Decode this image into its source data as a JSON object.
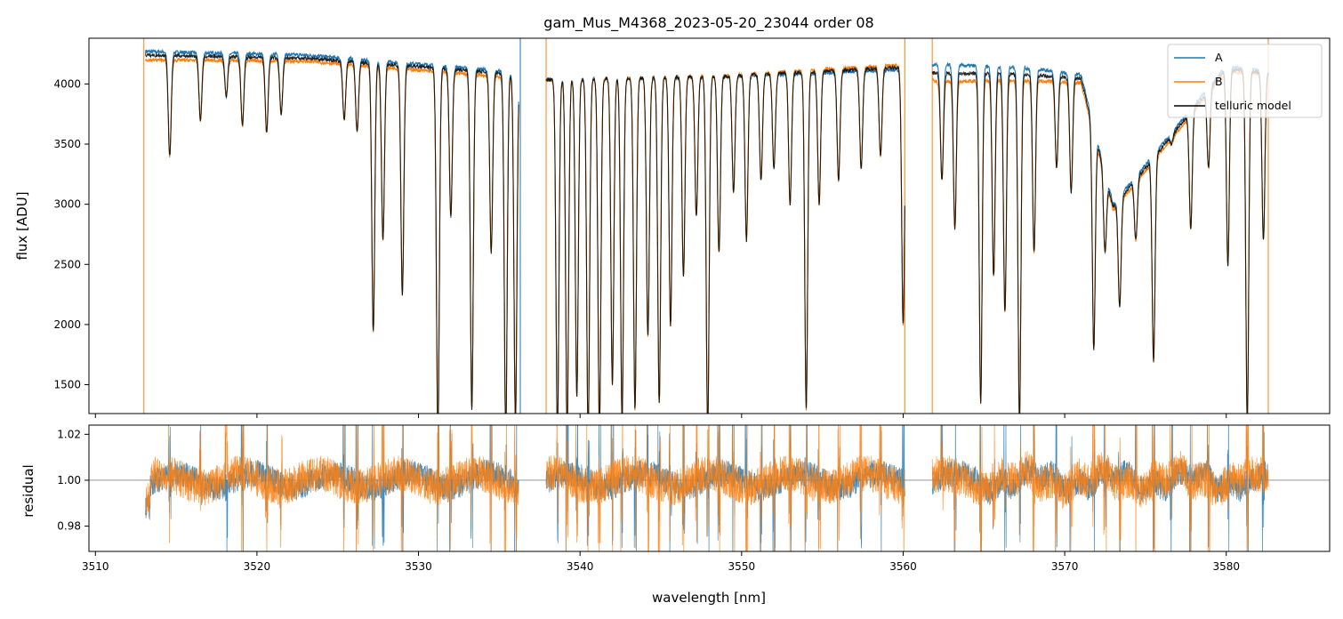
{
  "chart_data": [
    {
      "type": "line",
      "title": "gam_Mus_M4368_2023-05-20_23044  order 08",
      "xlabel": "",
      "ylabel": "flux [ADU]",
      "xlim": [
        3509.6,
        3586.4
      ],
      "ylim": [
        1260,
        4380
      ],
      "yticks": [
        1500,
        2000,
        2500,
        3000,
        3500,
        4000
      ],
      "ytick_labels": [
        "1500",
        "2000",
        "2500",
        "3000",
        "3500",
        "4000"
      ],
      "xticks": [
        3510,
        3520,
        3530,
        3540,
        3550,
        3560,
        3570,
        3580
      ],
      "legend": {
        "placement": "upper-right",
        "entries": [
          "A",
          "B",
          "telluric model"
        ]
      },
      "series": [
        {
          "name": "A",
          "color": "#1f77b4",
          "segments": [
            [
              3513.1,
              3536.2
            ],
            [
              3537.9,
              3560.1
            ],
            [
              3561.8,
              3582.6
            ]
          ],
          "continuum": [
            [
              3513.1,
              4270
            ],
            [
              3523,
              4240
            ],
            [
              3536,
              4100
            ],
            [
              3538,
              4040
            ],
            [
              3549,
              4060
            ],
            [
              3560,
              4120
            ],
            [
              3562,
              4160
            ],
            [
              3567,
              4140
            ],
            [
              3571,
              4080
            ],
            [
              3573,
              3000
            ],
            [
              3580,
              4150
            ],
            [
              3582.6,
              4100
            ]
          ]
        },
        {
          "name": "B",
          "color": "#ff7f0e",
          "segments": [
            [
              3513.1,
              3536.2
            ],
            [
              3537.9,
              3560.1
            ],
            [
              3561.8,
              3582.6
            ]
          ],
          "continuum": [
            [
              3513.1,
              4200
            ],
            [
              3523,
              4190
            ],
            [
              3536,
              4050
            ],
            [
              3538,
              4030
            ],
            [
              3549,
              4070
            ],
            [
              3560,
              4160
            ],
            [
              3562,
              4020
            ],
            [
              3567,
              4030
            ],
            [
              3571,
              4010
            ],
            [
              3573,
              2950
            ],
            [
              3580,
              4100
            ],
            [
              3582.6,
              4080
            ]
          ]
        },
        {
          "name": "telluric model",
          "color": "#000000",
          "segments": [
            [
              3513.1,
              3536.2
            ],
            [
              3537.9,
              3560.1
            ],
            [
              3561.8,
              3582.6
            ]
          ],
          "continuum": [
            [
              3513.1,
              4240
            ],
            [
              3523,
              4215
            ],
            [
              3536,
              4080
            ],
            [
              3538,
              4035
            ],
            [
              3549,
              4065
            ],
            [
              3560,
              4140
            ],
            [
              3562,
              4090
            ],
            [
              3567,
              4085
            ],
            [
              3571,
              4045
            ],
            [
              3573,
              2975
            ],
            [
              3580,
              4125
            ],
            [
              3582.6,
              4090
            ]
          ]
        }
      ],
      "absorption_lines": [
        [
          3514.6,
          3400
        ],
        [
          3516.5,
          3700
        ],
        [
          3518.1,
          3900
        ],
        [
          3519.1,
          3650
        ],
        [
          3520.6,
          3600
        ],
        [
          3521.5,
          3750
        ],
        [
          3525.4,
          3700
        ],
        [
          3526.2,
          3600
        ],
        [
          3527.2,
          1950
        ],
        [
          3527.8,
          2700
        ],
        [
          3529.0,
          2250
        ],
        [
          3531.2,
          1100
        ],
        [
          3532.0,
          2900
        ],
        [
          3533.3,
          1300
        ],
        [
          3534.5,
          2600
        ],
        [
          3535.4,
          1100
        ],
        [
          3536.0,
          1200
        ],
        [
          3538.6,
          1100
        ],
        [
          3539.2,
          1100
        ],
        [
          3539.8,
          1400
        ],
        [
          3540.5,
          1100
        ],
        [
          3541.2,
          1100
        ],
        [
          3542.0,
          1500
        ],
        [
          3542.6,
          1200
        ],
        [
          3543.4,
          1300
        ],
        [
          3544.2,
          1900
        ],
        [
          3544.9,
          1350
        ],
        [
          3545.6,
          2000
        ],
        [
          3546.4,
          2400
        ],
        [
          3547.2,
          2900
        ],
        [
          3547.9,
          1100
        ],
        [
          3548.6,
          2600
        ],
        [
          3549.5,
          3100
        ],
        [
          3550.3,
          2700
        ],
        [
          3551.2,
          3200
        ],
        [
          3552.0,
          3300
        ],
        [
          3553.0,
          3000
        ],
        [
          3554.0,
          1300
        ],
        [
          3554.8,
          3000
        ],
        [
          3556.0,
          3200
        ],
        [
          3557.4,
          3300
        ],
        [
          3558.6,
          3400
        ],
        [
          3560.0,
          2000
        ],
        [
          3562.4,
          3200
        ],
        [
          3563.2,
          2800
        ],
        [
          3564.8,
          1350
        ],
        [
          3565.6,
          2400
        ],
        [
          3566.3,
          2100
        ],
        [
          3567.2,
          1200
        ],
        [
          3568.1,
          2600
        ],
        [
          3569.5,
          3300
        ],
        [
          3570.4,
          3100
        ],
        [
          3571.8,
          1800
        ],
        [
          3572.5,
          2600
        ],
        [
          3573.4,
          2150
        ],
        [
          3574.4,
          2700
        ],
        [
          3575.5,
          1700
        ],
        [
          3576.6,
          3500
        ],
        [
          3577.8,
          2800
        ],
        [
          3578.9,
          3300
        ],
        [
          3580.1,
          2500
        ],
        [
          3581.3,
          1200
        ],
        [
          3582.3,
          2700
        ]
      ]
    },
    {
      "type": "line",
      "title": "",
      "xlabel": "wavelength [nm]",
      "ylabel": "residual",
      "xlim": [
        3509.6,
        3586.4
      ],
      "ylim": [
        0.969,
        1.024
      ],
      "yticks": [
        0.98,
        1.0,
        1.02
      ],
      "ytick_labels": [
        "0.98",
        "1.00",
        "1.02"
      ],
      "xticks": [
        3510,
        3520,
        3530,
        3540,
        3550,
        3560,
        3570,
        3580
      ],
      "xtick_labels": [
        "3510",
        "3520",
        "3530",
        "3540",
        "3550",
        "3560",
        "3570",
        "3580"
      ],
      "reference_line": 1.0,
      "series": [
        {
          "name": "A",
          "color": "#1f77b4",
          "baseline": 1.0,
          "noise": 0.006
        },
        {
          "name": "B",
          "color": "#ff7f0e",
          "baseline": 1.0,
          "noise": 0.008
        }
      ]
    }
  ]
}
